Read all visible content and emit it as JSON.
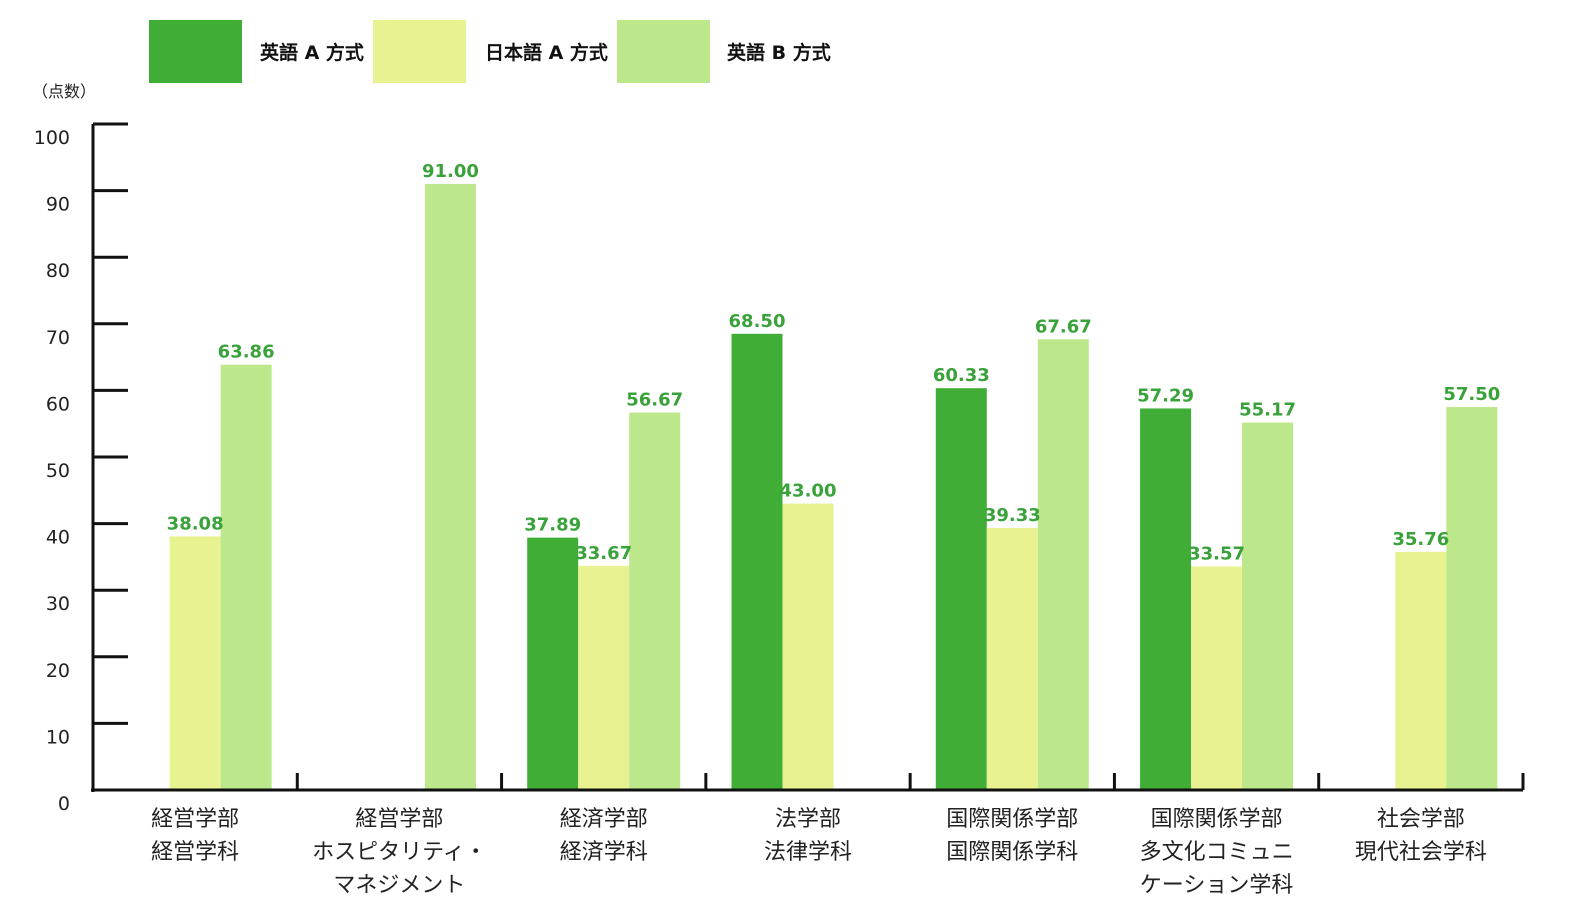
{
  "chart_data": {
    "type": "bar",
    "unit_label": "（点数）",
    "ylim": [
      0,
      100
    ],
    "yticks": [
      0,
      10,
      20,
      30,
      40,
      50,
      60,
      70,
      80,
      90,
      100
    ],
    "grid": false,
    "legend_position": "top-left",
    "categories": [
      [
        "経営学部",
        "経営学科"
      ],
      [
        "経営学部",
        "ホスピタリティ・",
        "マネジメント"
      ],
      [
        "経済学部",
        "経済学科"
      ],
      [
        "法学部",
        "法律学科"
      ],
      [
        "国際関係学部",
        "国際関係学科"
      ],
      [
        "国際関係学部",
        "多文化コミュニ",
        "ケーション学科"
      ],
      [
        "社会学部",
        "現代社会学科"
      ]
    ],
    "series": [
      {
        "name": "英語 A 方式",
        "color": "#40ad36",
        "values": [
          null,
          null,
          37.89,
          68.5,
          60.33,
          57.29,
          null
        ]
      },
      {
        "name": "日本語 A 方式",
        "color": "#e8f290",
        "values": [
          38.08,
          null,
          33.67,
          43.0,
          39.33,
          33.57,
          35.76
        ]
      },
      {
        "name": "英語 B 方式",
        "color": "#bce78b",
        "values": [
          63.86,
          91.0,
          56.67,
          null,
          67.67,
          55.17,
          57.5
        ]
      }
    ],
    "value_labels": [
      [
        null,
        null,
        "37.89",
        "68.50",
        "60.33",
        "57.29",
        null
      ],
      [
        "38.08",
        null,
        "33.67",
        "43.00",
        "39.33",
        "33.57",
        "35.76"
      ],
      [
        "63.86",
        "91.00",
        "56.67",
        null,
        "67.67",
        "55.17",
        "57.50"
      ]
    ],
    "value_label_color": "#3aa23a"
  }
}
